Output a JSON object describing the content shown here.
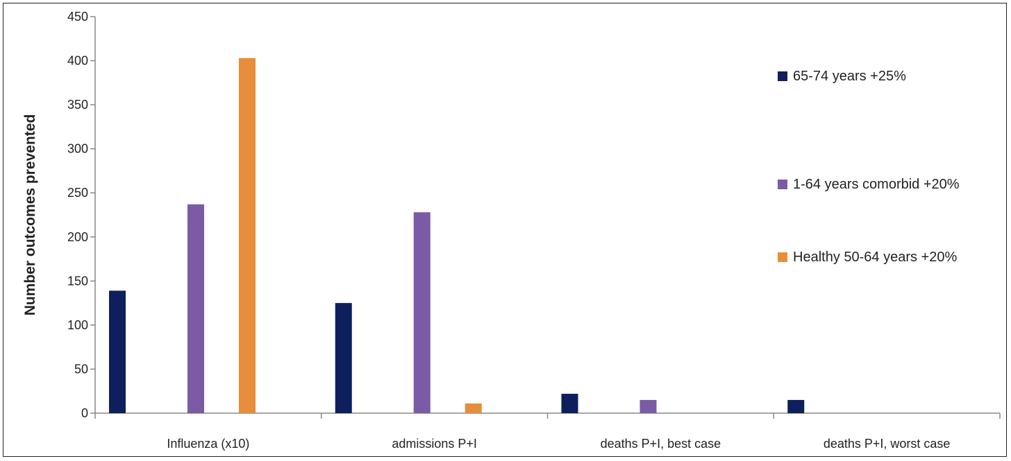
{
  "chart_data": {
    "type": "bar",
    "title": "",
    "xlabel": "",
    "ylabel": "Number outcomes prevented",
    "ylim": [
      0,
      450
    ],
    "yticks": [
      0,
      50,
      100,
      150,
      200,
      250,
      300,
      350,
      400,
      450
    ],
    "grid": false,
    "legend_position": "right",
    "categories": [
      "Influenza (x10)",
      "admissions P+I",
      "deaths P+I, best case",
      "deaths P+I, worst case"
    ],
    "series": [
      {
        "name": "65-74 years +25%",
        "color": "#0d1f5c",
        "values": [
          139,
          125,
          22,
          15
        ]
      },
      {
        "name": "1-64 years comorbid +20%",
        "color": "#7b5aa6",
        "values": [
          237,
          228,
          15,
          0
        ]
      },
      {
        "name": "Healthy 50-64 years +20%",
        "color": "#e88d3c",
        "values": [
          403,
          11,
          0,
          0
        ]
      }
    ]
  }
}
